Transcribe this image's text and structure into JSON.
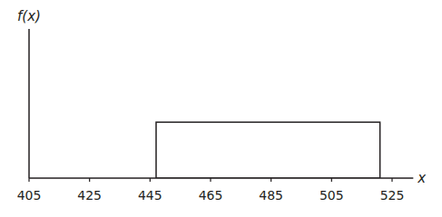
{
  "chart_data": {
    "type": "histogram",
    "x_label": "x",
    "y_label": "f(x)",
    "bins": [
      447,
      521
    ],
    "values": [
      0.0135
    ],
    "color": "#ffffff",
    "xlim": [
      405,
      532
    ],
    "xticks": [
      405,
      425,
      445,
      465,
      485,
      505,
      525
    ],
    "ylim": [
      0,
      0.036
    ],
    "tick_labels": "x",
    "grid": false
  }
}
